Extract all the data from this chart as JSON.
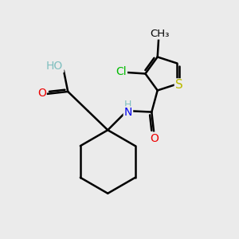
{
  "background_color": "#ebebeb",
  "bond_color": "#000000",
  "bond_width": 1.8,
  "atom_colors": {
    "C": "#000000",
    "H": "#7fbfbf",
    "N": "#0000ee",
    "O": "#ee0000",
    "S": "#bbbb00",
    "Cl": "#00bb00"
  },
  "font_size": 10
}
